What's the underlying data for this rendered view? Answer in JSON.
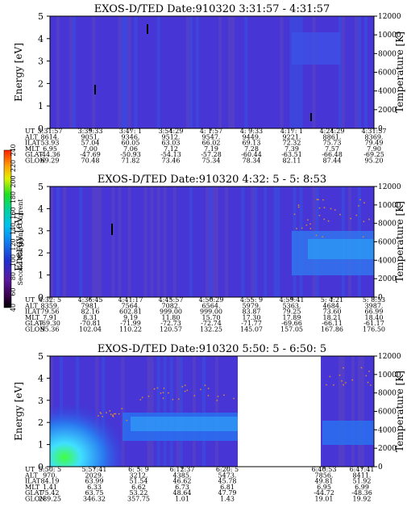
{
  "chart_data": [
    {
      "type": "heatmap",
      "title": "EXOS-D/TED   Date:910320  3:31:57 - 4:31:57",
      "ylabel": "Energy [eV]",
      "y2label": "Temperature [K]",
      "ylim": [
        0,
        5
      ],
      "y2lim": [
        0,
        12000
      ],
      "yticks": [
        "0",
        "1",
        "2",
        "3",
        "4",
        "5"
      ],
      "y2ticks": [
        "0",
        "2000",
        "4000",
        "6000",
        "8000",
        "10000",
        "12000"
      ],
      "row_labels": [
        "UT",
        "ALT",
        "ILAT",
        "MLT",
        "GLAT",
        "GLON"
      ],
      "columns": [
        [
          "3:31:57",
          "8614.",
          "53.93",
          "6.95",
          "-44.36",
          "69.29"
        ],
        [
          "3:39:33",
          "9051.",
          "57.04",
          "7.00",
          "-47.69",
          "70.48"
        ],
        [
          "3:47: 1",
          "9346.",
          "60.05",
          "7.06",
          "-50.93",
          "71.82"
        ],
        [
          "3:54:29",
          "9512.",
          "63.03",
          "7.12",
          "-54.13",
          "73.46"
        ],
        [
          "4: 1:57",
          "9547.",
          "66.02",
          "7.19",
          "-57.28",
          "75.34"
        ],
        [
          "4: 9:33",
          "9449.",
          "69.13",
          "7.28",
          "-60.44",
          "78.34"
        ],
        [
          "4:17: 1",
          "9221.",
          "72.32",
          "7.39",
          "-63.51",
          "82.11"
        ],
        [
          "4:24:29",
          "8861.",
          "75.73",
          "7.57",
          "-66.48",
          "87.44"
        ],
        [
          "4:31:57",
          "8369.",
          "79.49",
          "7.90",
          "-69.25",
          "95.20"
        ]
      ]
    },
    {
      "type": "heatmap",
      "title": "EXOS-D/TED   Date:910320  4:32: 5 - 5: 8:53",
      "ylabel": "Energy [eV]",
      "y2label": "Temperature [K]",
      "ylim": [
        0,
        5
      ],
      "y2lim": [
        0,
        12000
      ],
      "yticks": [
        "0",
        "1",
        "2",
        "3",
        "4",
        "5"
      ],
      "y2ticks": [
        "0",
        "2000",
        "4000",
        "6000",
        "8000",
        "10000",
        "12000"
      ],
      "row_labels": [
        "UT",
        "ALT",
        "ILAT",
        "MLT",
        "GLAT",
        "GLON"
      ],
      "columns": [
        [
          "4:32: 5",
          "8359.",
          "79.56",
          "7.91",
          "-69.30",
          "95.36"
        ],
        [
          "4:36:45",
          "7981.",
          "82.16",
          "8.31",
          "-70.81",
          "102.04"
        ],
        [
          "4:41:17",
          "7564.",
          "602.81",
          "9.19",
          "-71.99",
          "110.22"
        ],
        [
          "4:45:57",
          "7082.",
          "999.00",
          "11.80",
          "-72.73",
          "120.57"
        ],
        [
          "4:50:29",
          "6564.",
          "999.00",
          "15.70",
          "-72.74",
          "132.25"
        ],
        [
          "4:55: 9",
          "5979.",
          "83.87",
          "17.30",
          "-71.77",
          "145.07"
        ],
        [
          "4:59:41",
          "5363.",
          "79.25",
          "17.89",
          "-69.66",
          "157.05"
        ],
        [
          "5: 4:21",
          "4684.",
          "73.60",
          "18.21",
          "-66.11",
          "167.86"
        ],
        [
          "5: 8:53",
          "3987.",
          "66.99",
          "18.40",
          "-61.17",
          "176.50"
        ]
      ],
      "colorbar": {
        "label": "Second Harmonic Current",
        "ticks": [
          "40",
          "60",
          "80",
          "100",
          "120",
          "140",
          "160",
          "180",
          "200",
          "220",
          "240"
        ]
      }
    },
    {
      "type": "heatmap",
      "title": "EXOS-D/TED   Date:910320  5:50: 5 - 6:50: 5",
      "ylabel": "Energy [eV]",
      "y2label": "Temperature [K]",
      "ylim": [
        0,
        5
      ],
      "y2lim": [
        0,
        12000
      ],
      "yticks": [
        "0",
        "1",
        "2",
        "3",
        "4",
        "5"
      ],
      "y2ticks": [
        "0",
        "2000",
        "4000",
        "6000",
        "8000",
        "10000",
        "12000"
      ],
      "row_labels": [
        "UT",
        "ALT",
        "ILAT",
        "MLT",
        "GLAT",
        "GLON"
      ],
      "data_gap": "6:20 - 6:40 (no data)",
      "columns": [
        [
          "5:50: 5",
          "970.",
          "84.19",
          "1.41",
          "75.42",
          "289.25"
        ],
        [
          "5:57:41",
          "2029.",
          "63.99",
          "6.33",
          "63.75",
          "346.32"
        ],
        [
          "6: 5: 9",
          "3212.",
          "51.54",
          "6.62",
          "53.22",
          "357.75"
        ],
        [
          "6:12:37",
          "4385.",
          "46.62",
          "6.73",
          "48.64",
          "1.01"
        ],
        [
          "6:20: 5",
          "5473.",
          "45.78",
          "6.81",
          "47.79",
          "1.43"
        ],
        [
          "6:40:53",
          "7856.",
          "49.81",
          "6.95",
          "-44.72",
          "19.01"
        ],
        [
          "6:47:41",
          "8411.",
          "51.92",
          "6.99",
          "-48.36",
          "19.92"
        ]
      ]
    }
  ]
}
